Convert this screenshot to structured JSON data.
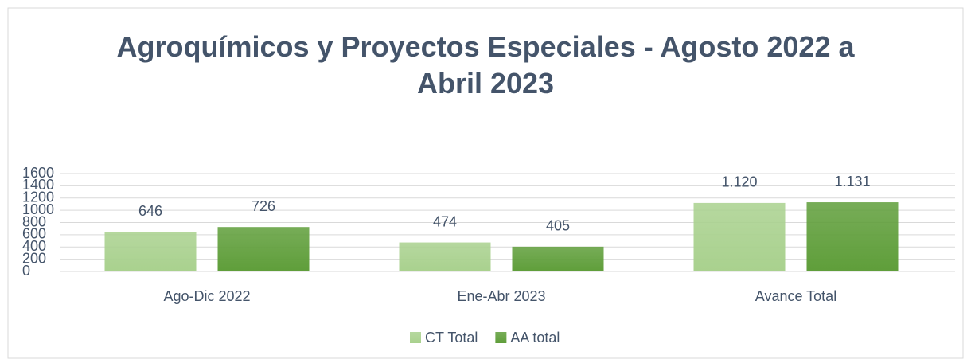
{
  "chart_data": {
    "type": "bar",
    "title": "Agroquímicos y Proyectos Especiales - Agosto 2022 a Abril 2023",
    "categories": [
      "Ago-Dic 2022",
      "Ene-Abr 2023",
      "Avance Total"
    ],
    "series": [
      {
        "name": "CT Total",
        "color": "#a9d18e",
        "values": [
          646,
          474,
          1120
        ],
        "value_labels": [
          "646",
          "474",
          "1.120"
        ]
      },
      {
        "name": "AA total",
        "color": "#5f9e3a",
        "values": [
          726,
          405,
          1131
        ],
        "value_labels": [
          "726",
          "405",
          "1.131"
        ]
      }
    ],
    "ylim": [
      0,
      1600
    ],
    "yticks": [
      0,
      200,
      400,
      600,
      800,
      1000,
      1200,
      1400,
      1600
    ],
    "grid": true,
    "legend": "bottom"
  }
}
